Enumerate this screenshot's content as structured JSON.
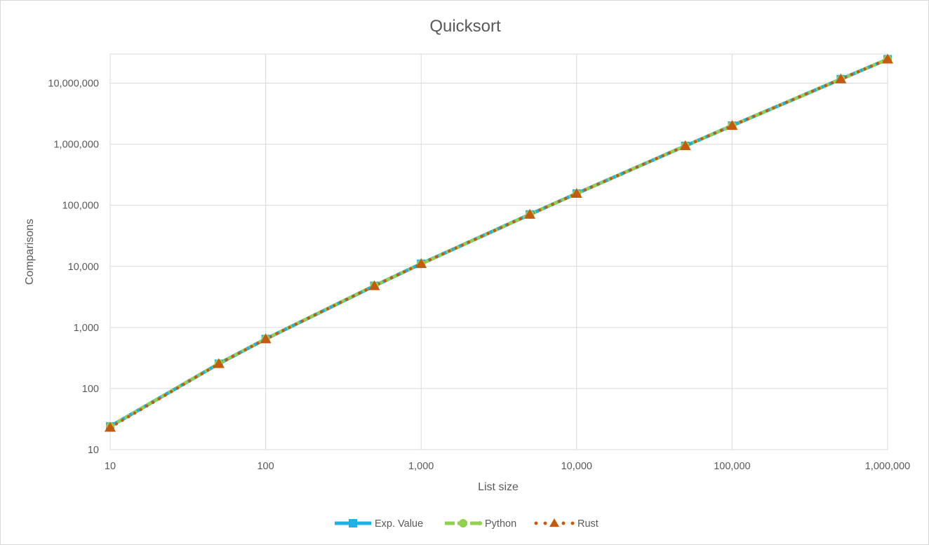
{
  "chart_data": {
    "type": "line",
    "title": "Quicksort",
    "xlabel": "List size",
    "ylabel": "Comparisons",
    "x_scale": "log",
    "y_scale": "log",
    "xlim": [
      10,
      1000000
    ],
    "ylim": [
      10,
      30000000
    ],
    "x_ticks": [
      10,
      100,
      1000,
      10000,
      100000,
      1000000
    ],
    "x_tick_labels": [
      "10",
      "100",
      "1,000",
      "10,000",
      "100,000",
      "1,000,000"
    ],
    "y_ticks": [
      10,
      100,
      1000,
      10000,
      100000,
      1000000,
      10000000
    ],
    "y_tick_labels": [
      "10",
      "100",
      "1,000",
      "10,000",
      "100,000",
      "1,000,000",
      "10,000,000"
    ],
    "grid": true,
    "legend_position": "bottom",
    "x": [
      10,
      50,
      100,
      500,
      1000,
      5000,
      10000,
      50000,
      100000,
      500000,
      1000000
    ],
    "series": [
      {
        "name": "Exp. Value",
        "color": "#1fb1e6",
        "style": "solid",
        "marker": "square",
        "values": [
          24,
          255,
          648,
          4806,
          11037,
          70890,
          155771,
          939448,
          2018309,
          11645990,
          24631026
        ]
      },
      {
        "name": "Python",
        "color": "#92d050",
        "style": "dotted",
        "marker": "circle",
        "values": [
          24,
          258,
          650,
          4850,
          11000,
          71000,
          156000,
          940000,
          2020000,
          11650000,
          24650000
        ]
      },
      {
        "name": "Rust",
        "color": "#c55a11",
        "style": "dotted",
        "marker": "triangle",
        "values": [
          23,
          254,
          645,
          4790,
          11010,
          70700,
          155500,
          938000,
          2016000,
          11640000,
          24600000
        ]
      }
    ]
  }
}
